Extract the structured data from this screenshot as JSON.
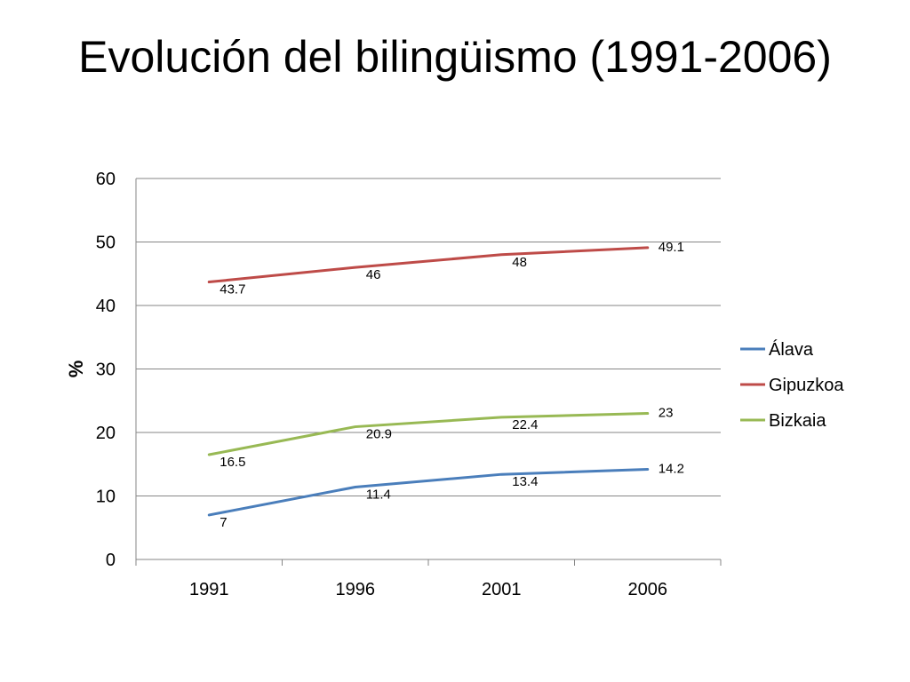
{
  "slide": {
    "title": "Evolución del bilingüismo (1991-2006)"
  },
  "chart_data": {
    "type": "line",
    "title": "",
    "xlabel": "",
    "ylabel": "%",
    "categories": [
      "1991",
      "1996",
      "2001",
      "2006"
    ],
    "ylim": [
      0,
      60
    ],
    "yticks": [
      0,
      10,
      20,
      30,
      40,
      50,
      60
    ],
    "grid": true,
    "legend_position": "right",
    "series": [
      {
        "name": "Álava",
        "color": "#4a7ebb",
        "values": [
          7,
          11.4,
          13.4,
          14.2
        ]
      },
      {
        "name": "Gipuzkoa",
        "color": "#be4b48",
        "values": [
          43.7,
          46,
          48,
          49.1
        ]
      },
      {
        "name": "Bizkaia",
        "color": "#98b954",
        "values": [
          16.5,
          20.9,
          22.4,
          23
        ]
      }
    ],
    "data_labels": true
  }
}
